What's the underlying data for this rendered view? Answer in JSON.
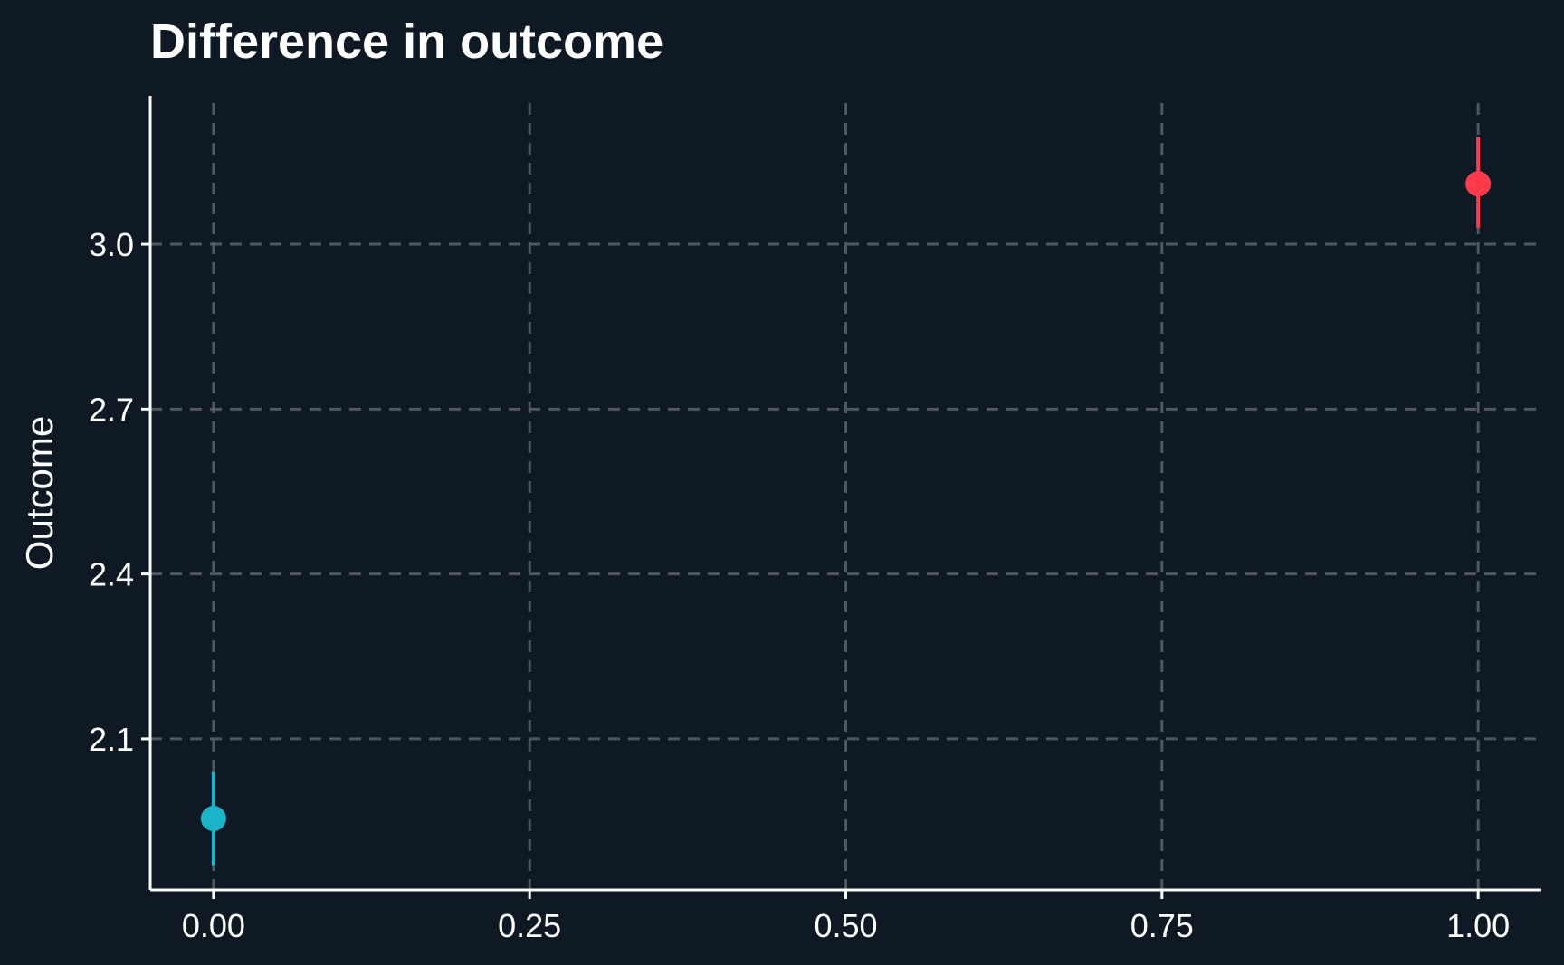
{
  "chart_data": {
    "type": "scatter",
    "title": "Difference in outcome",
    "xlabel": "",
    "ylabel": "Outcome",
    "xlim": [
      -0.05,
      1.05
    ],
    "ylim": [
      1.825,
      3.27
    ],
    "x_ticks": [
      0,
      0.25,
      0.5,
      0.75,
      1
    ],
    "x_tick_labels": [
      "0.00",
      "0.25",
      "0.50",
      "0.75",
      "1.00"
    ],
    "y_ticks": [
      2.1,
      2.4,
      2.7,
      3.0
    ],
    "y_tick_labels": [
      "2.1",
      "2.4",
      "2.7",
      "3.0"
    ],
    "grid": true,
    "legend": "none",
    "points": [
      {
        "x": 0,
        "y": 1.955,
        "ymin": 1.87,
        "ymax": 2.04,
        "color": "#1ab3c9"
      },
      {
        "x": 1,
        "y": 3.11,
        "ymin": 3.03,
        "ymax": 3.195,
        "color": "#ff3a4a"
      }
    ]
  },
  "colors": {
    "background": "#0e1924",
    "axis": "#ffffff",
    "grid": "#5a636b",
    "text": "#ffffff"
  }
}
